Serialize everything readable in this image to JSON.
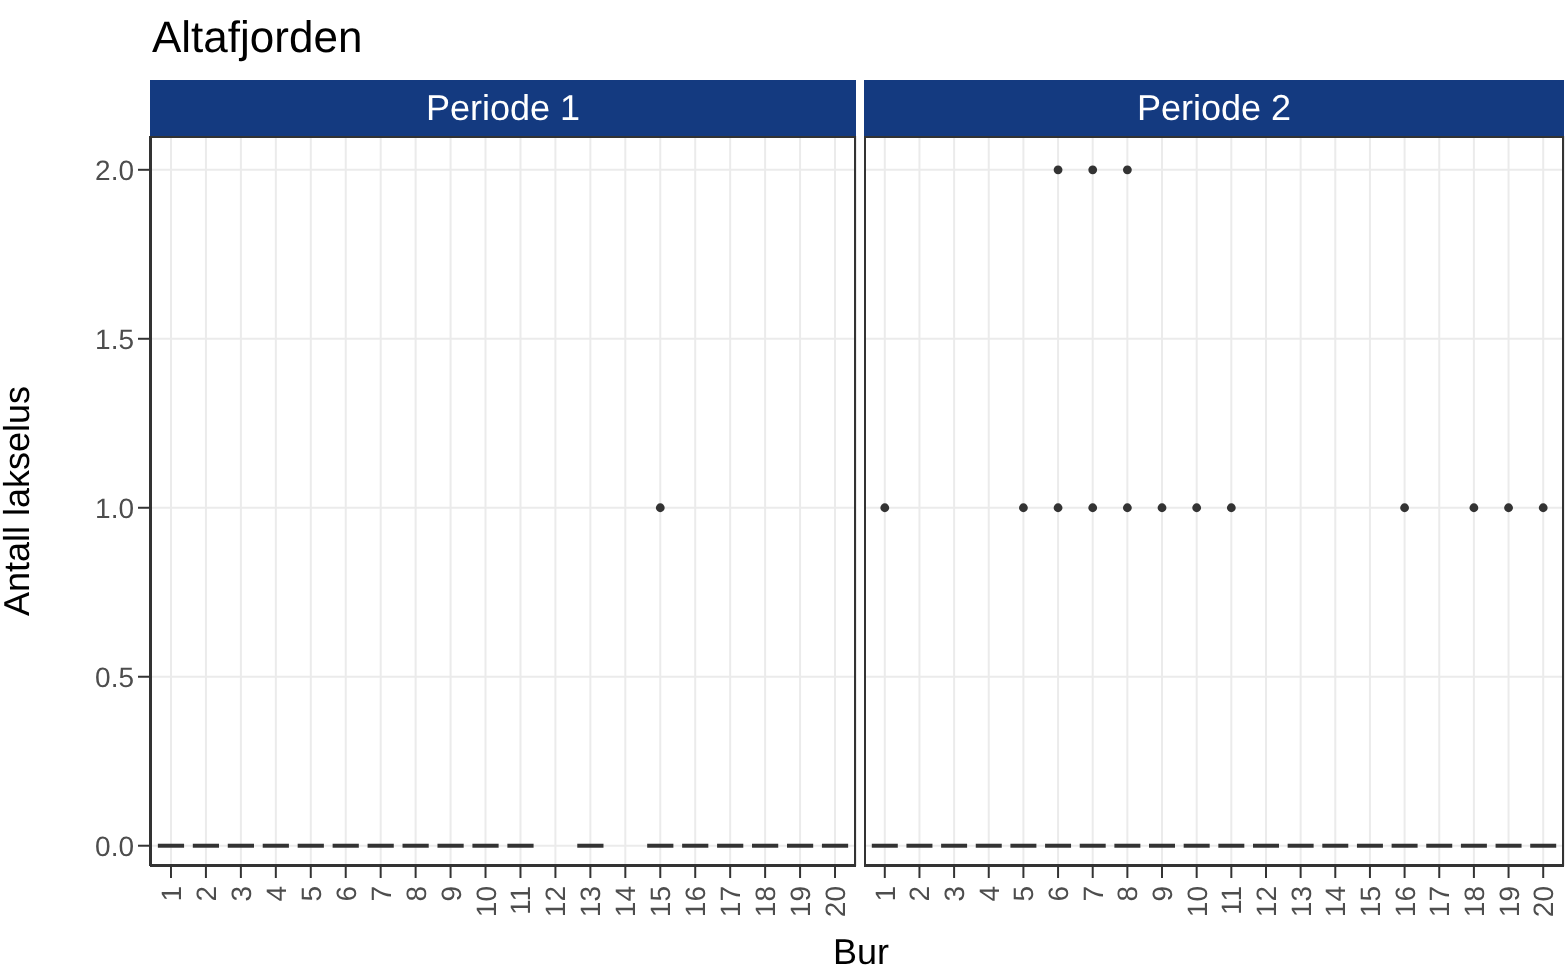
{
  "chart_data": [
    {
      "type": "box",
      "title": "Altafjorden",
      "subtitle": "Periode 1",
      "xlabel": "Bur",
      "ylabel": "Antall lakselus",
      "color": "#333333",
      "marker": "circle",
      "grid": true,
      "categories": [
        "1",
        "2",
        "3",
        "4",
        "5",
        "6",
        "7",
        "8",
        "9",
        "10",
        "11",
        "12",
        "13",
        "14",
        "15",
        "16",
        "17",
        "18",
        "19",
        "20"
      ],
      "ylim": [
        -0.06,
        2.1
      ],
      "yticks": [
        {
          "value": 0,
          "label": "0.0"
        },
        {
          "value": 0.5,
          "label": "0.5"
        },
        {
          "value": 1,
          "label": "1.0"
        },
        {
          "value": 1.5,
          "label": "1.5"
        },
        {
          "value": 2,
          "label": "2.0"
        }
      ],
      "boxes": [
        {
          "low": 0,
          "q1": 0,
          "median": 0,
          "q3": 0,
          "high": 0
        },
        {
          "low": 0,
          "q1": 0,
          "median": 0,
          "q3": 0,
          "high": 0
        },
        {
          "low": 0,
          "q1": 0,
          "median": 0,
          "q3": 0,
          "high": 0
        },
        {
          "low": 0,
          "q1": 0,
          "median": 0,
          "q3": 0,
          "high": 0
        },
        {
          "low": 0,
          "q1": 0,
          "median": 0,
          "q3": 0,
          "high": 0
        },
        {
          "low": 0,
          "q1": 0,
          "median": 0,
          "q3": 0,
          "high": 0
        },
        {
          "low": 0,
          "q1": 0,
          "median": 0,
          "q3": 0,
          "high": 0
        },
        {
          "low": 0,
          "q1": 0,
          "median": 0,
          "q3": 0,
          "high": 0
        },
        {
          "low": 0,
          "q1": 0,
          "median": 0,
          "q3": 0,
          "high": 0
        },
        {
          "low": 0,
          "q1": 0,
          "median": 0,
          "q3": 0,
          "high": 0
        },
        {
          "low": 0,
          "q1": 0,
          "median": 0,
          "q3": 0,
          "high": 0
        },
        null,
        {
          "low": 0,
          "q1": 0,
          "median": 0,
          "q3": 0,
          "high": 0
        },
        null,
        {
          "low": 0,
          "q1": 0,
          "median": 0,
          "q3": 0,
          "high": 0,
          "outliers": [
            1
          ]
        },
        {
          "low": 0,
          "q1": 0,
          "median": 0,
          "q3": 0,
          "high": 0
        },
        {
          "low": 0,
          "q1": 0,
          "median": 0,
          "q3": 0,
          "high": 0
        },
        {
          "low": 0,
          "q1": 0,
          "median": 0,
          "q3": 0,
          "high": 0
        },
        {
          "low": 0,
          "q1": 0,
          "median": 0,
          "q3": 0,
          "high": 0
        },
        {
          "low": 0,
          "q1": 0,
          "median": 0,
          "q3": 0,
          "high": 0
        }
      ]
    },
    {
      "type": "box",
      "subtitle": "Periode 2",
      "color": "#333333",
      "marker": "circle",
      "grid": true,
      "tick_labels": "x",
      "categories": [
        "1",
        "2",
        "3",
        "4",
        "5",
        "6",
        "7",
        "8",
        "9",
        "10",
        "11",
        "12",
        "13",
        "14",
        "15",
        "16",
        "17",
        "18",
        "19",
        "20"
      ],
      "ylim": [
        -0.06,
        2.1
      ],
      "yticks": [
        0,
        0.5,
        1,
        1.5,
        2
      ],
      "boxes": [
        {
          "low": 0,
          "q1": 0,
          "median": 0,
          "q3": 0,
          "high": 0,
          "outliers": [
            1
          ]
        },
        {
          "low": 0,
          "q1": 0,
          "median": 0,
          "q3": 0,
          "high": 0
        },
        {
          "low": 0,
          "q1": 0,
          "median": 0,
          "q3": 0,
          "high": 0
        },
        {
          "low": 0,
          "q1": 0,
          "median": 0,
          "q3": 0,
          "high": 0
        },
        {
          "low": 0,
          "q1": 0,
          "median": 0,
          "q3": 0,
          "high": 0,
          "outliers": [
            1
          ]
        },
        {
          "low": 0,
          "q1": 0,
          "median": 0,
          "q3": 0,
          "high": 0,
          "outliers": [
            1,
            2
          ]
        },
        {
          "low": 0,
          "q1": 0,
          "median": 0,
          "q3": 0,
          "high": 0,
          "outliers": [
            1,
            2
          ]
        },
        {
          "low": 0,
          "q1": 0,
          "median": 0,
          "q3": 0,
          "high": 0,
          "outliers": [
            1,
            2
          ]
        },
        {
          "low": 0,
          "q1": 0,
          "median": 0,
          "q3": 0,
          "high": 0,
          "outliers": [
            1
          ]
        },
        {
          "low": 0,
          "q1": 0,
          "median": 0,
          "q3": 0,
          "high": 0,
          "outliers": [
            1
          ]
        },
        {
          "low": 0,
          "q1": 0,
          "median": 0,
          "q3": 0,
          "high": 0,
          "outliers": [
            1
          ]
        },
        {
          "low": 0,
          "q1": 0,
          "median": 0,
          "q3": 0,
          "high": 0
        },
        {
          "low": 0,
          "q1": 0,
          "median": 0,
          "q3": 0,
          "high": 0
        },
        {
          "low": 0,
          "q1": 0,
          "median": 0,
          "q3": 0,
          "high": 0
        },
        {
          "low": 0,
          "q1": 0,
          "median": 0,
          "q3": 0,
          "high": 0
        },
        {
          "low": 0,
          "q1": 0,
          "median": 0,
          "q3": 0,
          "high": 0,
          "outliers": [
            1
          ]
        },
        {
          "low": 0,
          "q1": 0,
          "median": 0,
          "q3": 0,
          "high": 0
        },
        {
          "low": 0,
          "q1": 0,
          "median": 0,
          "q3": 0,
          "high": 0,
          "outliers": [
            1
          ]
        },
        {
          "low": 0,
          "q1": 0,
          "median": 0,
          "q3": 0,
          "high": 0,
          "outliers": [
            1
          ]
        },
        {
          "low": 0,
          "q1": 0,
          "median": 0,
          "q3": 0,
          "high": 0,
          "outliers": [
            1
          ]
        }
      ]
    }
  ]
}
